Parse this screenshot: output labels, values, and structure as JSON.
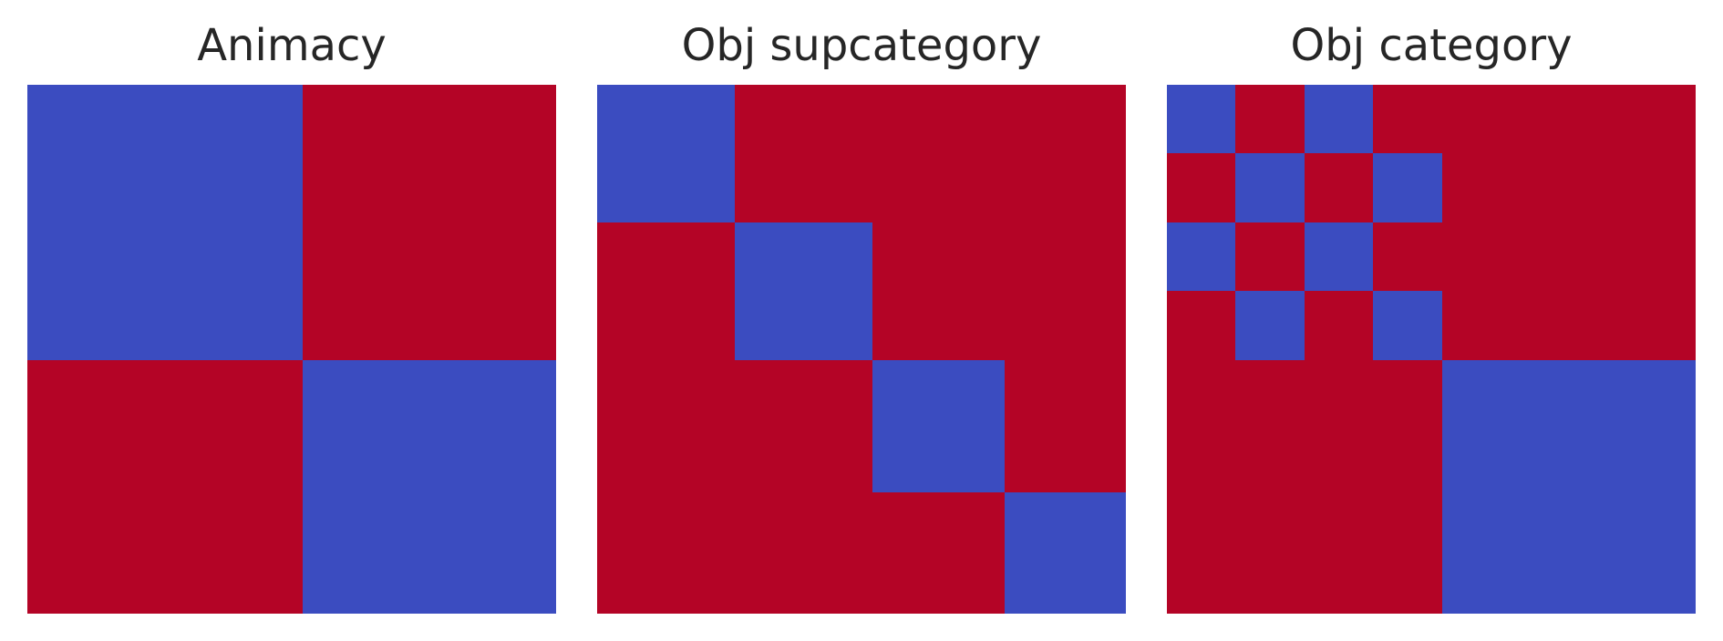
{
  "colors": {
    "low": "#3b4cc0",
    "high": "#b40426",
    "title_text": "#262626",
    "background": "#ffffff"
  },
  "chart_data": [
    {
      "type": "heatmap",
      "title": "Animacy",
      "xlabel": "",
      "ylabel": "",
      "colormap": "coolwarm",
      "grid": false,
      "legend": "none",
      "levels": [
        "low",
        "high"
      ],
      "row_sizes": [
        52,
        48
      ],
      "col_sizes": [
        52,
        48
      ],
      "matrix": [
        [
          "low",
          "high"
        ],
        [
          "high",
          "low"
        ]
      ]
    },
    {
      "type": "heatmap",
      "title": "Obj supcategory",
      "xlabel": "",
      "ylabel": "",
      "colormap": "coolwarm",
      "grid": false,
      "legend": "none",
      "levels": [
        "low",
        "high"
      ],
      "row_sizes": [
        26,
        26,
        25,
        23
      ],
      "col_sizes": [
        26,
        26,
        25,
        23
      ],
      "matrix": [
        [
          "low",
          "high",
          "high",
          "high"
        ],
        [
          "high",
          "low",
          "high",
          "high"
        ],
        [
          "high",
          "high",
          "low",
          "high"
        ],
        [
          "high",
          "high",
          "high",
          "low"
        ]
      ]
    },
    {
      "type": "heatmap",
      "title": "Obj category",
      "xlabel": "",
      "ylabel": "",
      "colormap": "coolwarm",
      "grid": false,
      "legend": "none",
      "levels": [
        "low",
        "high"
      ],
      "row_sizes": [
        13,
        13,
        13,
        13,
        48
      ],
      "col_sizes": [
        13,
        13,
        13,
        13,
        48
      ],
      "matrix": [
        [
          "low",
          "high",
          "low",
          "high",
          "high"
        ],
        [
          "high",
          "low",
          "high",
          "low",
          "high"
        ],
        [
          "low",
          "high",
          "low",
          "high",
          "high"
        ],
        [
          "high",
          "low",
          "high",
          "low",
          "high"
        ],
        [
          "high",
          "high",
          "high",
          "high",
          "low"
        ]
      ]
    }
  ]
}
